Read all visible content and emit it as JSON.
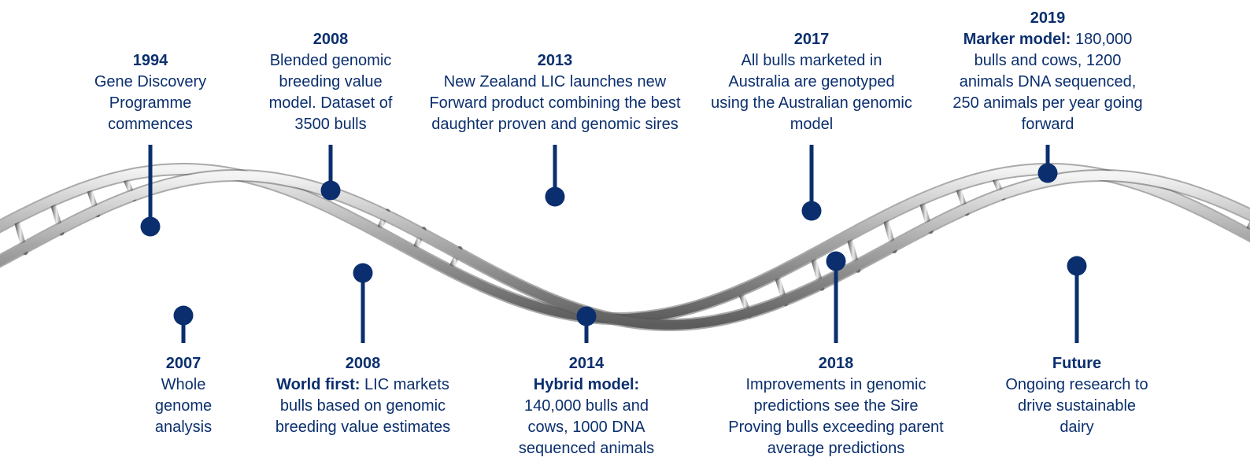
{
  "timeline": {
    "top": [
      {
        "year": "1994",
        "text": "Gene Discovery Programme commences"
      },
      {
        "year": "2008",
        "text": "Blended genomic breeding value model. Dataset of 3500 bulls"
      },
      {
        "year": "2013",
        "text": "New Zealand LIC launches new Forward product combining the best daughter proven and genomic sires"
      },
      {
        "year": "2017",
        "text": "All bulls marketed in Australia are genotyped using the Australian genomic model"
      },
      {
        "year": "2019",
        "highlight": "Marker model:",
        "text": "180,000 bulls and cows, 1200 animals DNA sequenced, 250 animals per year going forward"
      }
    ],
    "bottom": [
      {
        "year": "2007",
        "text": "Whole genome analysis"
      },
      {
        "year": "2008",
        "highlight": "World first:",
        "text": "LIC markets bulls based on genomic breeding value estimates"
      },
      {
        "year": "2014",
        "highlight": "Hybrid model:",
        "text": "140,000 bulls and cows, 1000 DNA sequenced animals"
      },
      {
        "year": "2018",
        "text": "Improvements in genomic predictions see the Sire Proving bulls exceeding parent average predictions"
      },
      {
        "year": "Future",
        "text": "Ongoing research to drive sustainable dairy"
      }
    ]
  }
}
